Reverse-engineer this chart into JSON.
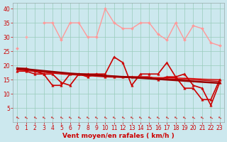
{
  "x": [
    0,
    1,
    2,
    3,
    4,
    5,
    6,
    7,
    8,
    9,
    10,
    11,
    12,
    13,
    14,
    15,
    16,
    17,
    18,
    19,
    20,
    21,
    22,
    23
  ],
  "series": [
    {
      "label": "rafales_high",
      "color": "#ff9999",
      "lw": 1.0,
      "marker": "D",
      "ms": 2.0,
      "zorder": 2,
      "values": [
        26,
        null,
        null,
        35,
        35,
        29,
        35,
        35,
        30,
        30,
        40,
        35,
        33,
        33,
        35,
        35,
        31,
        29,
        35,
        29,
        34,
        33,
        28,
        27
      ]
    },
    {
      "label": "rafales_low",
      "color": "#ffaaaa",
      "lw": 1.0,
      "marker": "D",
      "ms": 2.0,
      "zorder": 2,
      "values": [
        null,
        30,
        null,
        null,
        null,
        null,
        null,
        null,
        null,
        null,
        null,
        null,
        null,
        null,
        null,
        null,
        null,
        null,
        null,
        null,
        null,
        null,
        null,
        null
      ]
    },
    {
      "label": "vent_high",
      "color": "#cc0000",
      "lw": 1.2,
      "marker": "^",
      "ms": 2.5,
      "zorder": 4,
      "values": [
        19,
        19,
        18,
        17,
        17,
        14,
        13,
        17,
        17,
        17,
        17,
        23,
        21,
        13,
        17,
        17,
        17,
        21,
        16,
        17,
        13,
        12,
        6,
        14
      ]
    },
    {
      "label": "vent_trend1",
      "color": "#cc0000",
      "lw": 1.0,
      "marker": null,
      "ms": 0,
      "zorder": 3,
      "values": [
        18.5,
        18.2,
        17.9,
        17.6,
        17.3,
        17.0,
        16.8,
        16.6,
        16.4,
        16.2,
        16.0,
        15.9,
        15.8,
        15.7,
        15.6,
        15.5,
        15.4,
        15.3,
        15.2,
        15.1,
        15.0,
        14.8,
        14.6,
        14.4
      ]
    },
    {
      "label": "vent_trend2",
      "color": "#dd0000",
      "lw": 1.0,
      "marker": null,
      "ms": 0,
      "zorder": 3,
      "values": [
        18.8,
        18.5,
        18.2,
        17.9,
        17.6,
        17.3,
        17.1,
        16.9,
        16.7,
        16.5,
        16.3,
        16.2,
        16.1,
        16.0,
        15.9,
        15.8,
        15.7,
        15.7,
        15.6,
        15.5,
        15.4,
        15.2,
        15.1,
        15.0
      ]
    },
    {
      "label": "vent_trend3",
      "color": "#990000",
      "lw": 1.8,
      "marker": null,
      "ms": 0,
      "zorder": 5,
      "values": [
        19.0,
        18.7,
        18.4,
        18.1,
        17.8,
        17.5,
        17.2,
        17.0,
        16.8,
        16.6,
        16.4,
        16.2,
        16.0,
        15.8,
        15.6,
        15.4,
        15.2,
        15.0,
        14.8,
        14.6,
        14.4,
        14.2,
        14.0,
        13.8
      ]
    },
    {
      "label": "vent_low",
      "color": "#cc0000",
      "lw": 1.2,
      "marker": "^",
      "ms": 2.5,
      "zorder": 4,
      "values": [
        18,
        18,
        17,
        17,
        13,
        13,
        17,
        17,
        16,
        17,
        16,
        16,
        16,
        16,
        16,
        16,
        15,
        16,
        16,
        12,
        12,
        8,
        8,
        15
      ]
    }
  ],
  "xlabel": "Vent moyen/en rafales ( km/h )",
  "ylim": [
    0,
    42
  ],
  "xlim": [
    -0.5,
    23.5
  ],
  "yticks": [
    5,
    10,
    15,
    20,
    25,
    30,
    35,
    40
  ],
  "xticks": [
    0,
    1,
    2,
    3,
    4,
    5,
    6,
    7,
    8,
    9,
    10,
    11,
    12,
    13,
    14,
    15,
    16,
    17,
    18,
    19,
    20,
    21,
    22,
    23
  ],
  "background_color": "#cce8ee",
  "grid_color": "#99ccbb",
  "arrow_color": "#cc0000",
  "tick_color": "#cc0000",
  "xlabel_color": "#cc0000",
  "xlabel_fontsize": 6.5,
  "tick_fontsize": 5.5
}
